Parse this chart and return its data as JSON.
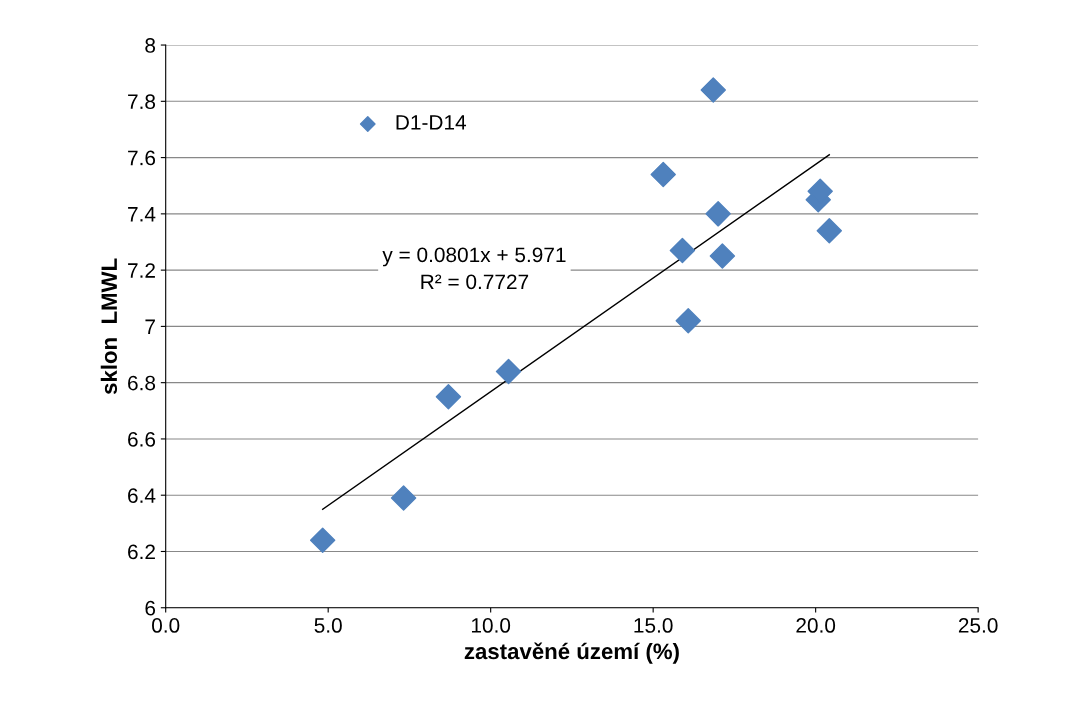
{
  "chart_data": {
    "type": "scatter",
    "xlabel": "zastavěné území (%)",
    "ylabel": "sklon  LMWL",
    "xlim": [
      0,
      25
    ],
    "xticks": [
      {
        "value": 0,
        "label": "0.0"
      },
      {
        "value": 5,
        "label": "5.0"
      },
      {
        "value": 10,
        "label": "10.0"
      },
      {
        "value": 15,
        "label": "15.0"
      },
      {
        "value": 20,
        "label": "20.0"
      },
      {
        "value": 25,
        "label": "25.0"
      }
    ],
    "ylim": [
      6,
      8
    ],
    "yticks": [
      6,
      6.2,
      6.4,
      6.6,
      6.8,
      7,
      7.2,
      7.4,
      7.6,
      7.8,
      8
    ],
    "grid": "y",
    "legend": "top left",
    "marker": "diamond",
    "series": [
      {
        "name": "D1-D14",
        "color": "#4f81bd",
        "x": [
          4.83,
          7.32,
          8.7,
          10.55,
          15.31,
          15.9,
          16.08,
          16.85,
          17.0,
          17.13,
          20.08,
          20.14,
          20.42
        ],
        "values": [
          6.24,
          6.39,
          6.75,
          6.84,
          7.54,
          7.27,
          7.02,
          7.84,
          7.4,
          7.25,
          7.45,
          7.48,
          7.34
        ]
      },
      {
        "type": "line",
        "marker": "none",
        "color": "#000000",
        "x": [
          4.83,
          20.42
        ],
        "values": [
          6.35,
          7.61
        ]
      }
    ],
    "annotations": [
      "y = 0.0801x + 5.971\nR² = 0.7727"
    ]
  }
}
